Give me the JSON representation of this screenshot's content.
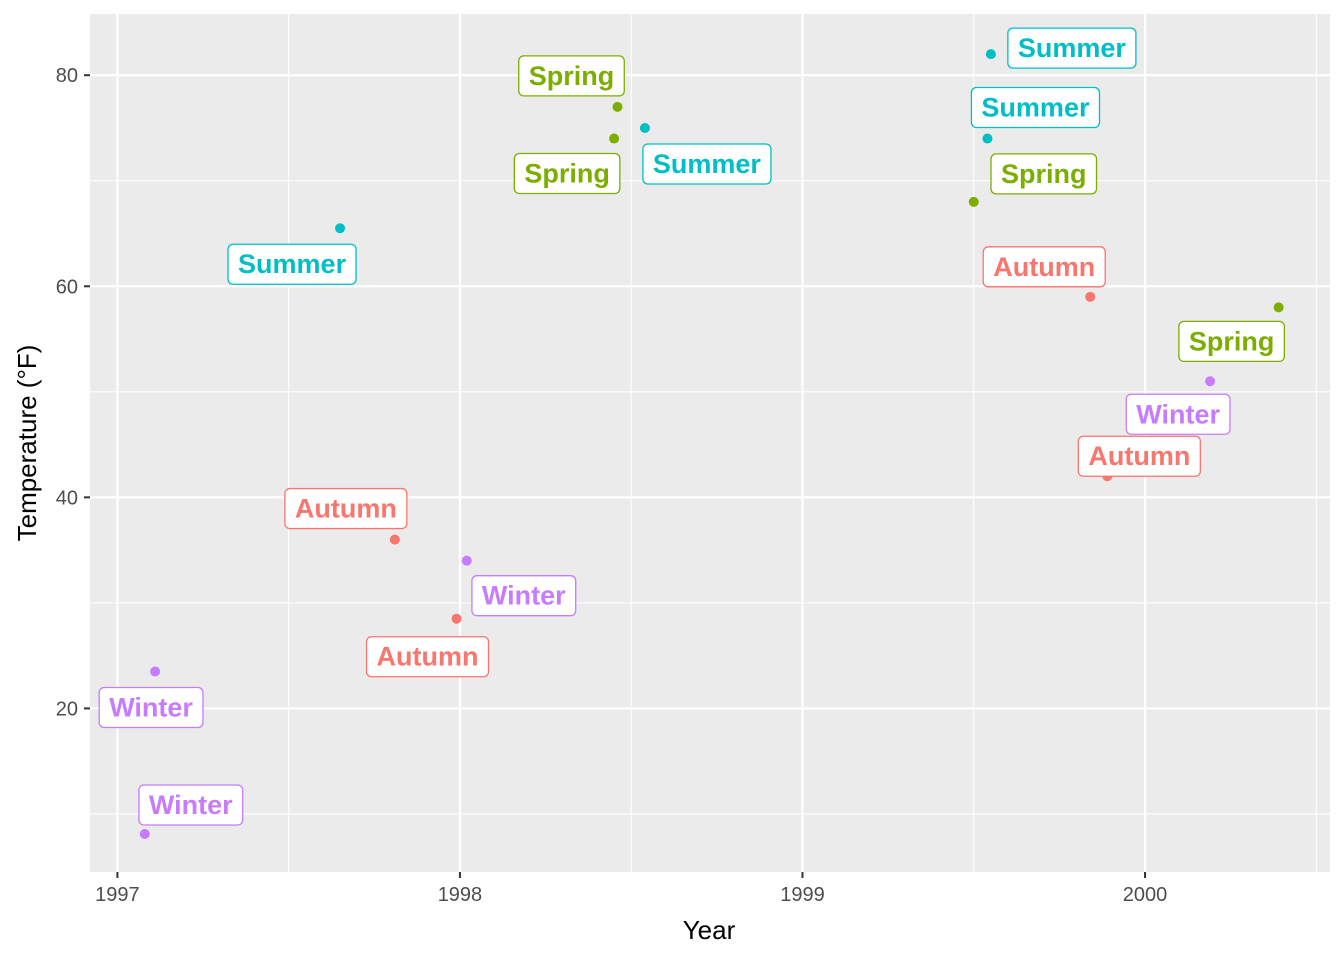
{
  "chart_data": {
    "type": "scatter",
    "title": "",
    "xlabel": "Year",
    "ylabel": "Temperature (°F)",
    "xlim": [
      1996.92,
      2000.54
    ],
    "ylim": [
      4.5,
      85.8
    ],
    "x_ticks": [
      1997,
      1998,
      1999,
      2000
    ],
    "x_tick_labels": [
      "1997",
      "1998",
      "1999",
      "2000"
    ],
    "y_ticks": [
      20,
      40,
      60,
      80
    ],
    "y_tick_labels": [
      "20",
      "40",
      "60",
      "80"
    ],
    "grid": true,
    "legend": "none",
    "colors": {
      "Autumn": "#F8766D",
      "Spring": "#7CAE00",
      "Summer": "#00BFC4",
      "Winter": "#C77CFF"
    },
    "points": [
      {
        "x": 1997.08,
        "y": 8.1,
        "label": "Winter"
      },
      {
        "x": 1997.11,
        "y": 23.5,
        "label": "Winter"
      },
      {
        "x": 1997.65,
        "y": 65.5,
        "label": "Summer"
      },
      {
        "x": 1997.81,
        "y": 36.0,
        "label": "Autumn"
      },
      {
        "x": 1997.99,
        "y": 28.5,
        "label": "Autumn"
      },
      {
        "x": 1998.02,
        "y": 34.0,
        "label": "Winter"
      },
      {
        "x": 1998.45,
        "y": 74.0,
        "label": "Spring"
      },
      {
        "x": 1998.46,
        "y": 77.0,
        "label": "Spring"
      },
      {
        "x": 1998.54,
        "y": 75.0,
        "label": "Summer"
      },
      {
        "x": 1999.5,
        "y": 68.0,
        "label": "Spring"
      },
      {
        "x": 1999.54,
        "y": 74.0,
        "label": "Summer"
      },
      {
        "x": 1999.55,
        "y": 82.0,
        "label": "Summer"
      },
      {
        "x": 1999.84,
        "y": 59.0,
        "label": "Autumn"
      },
      {
        "x": 1999.89,
        "y": 42.0,
        "label": "Autumn"
      },
      {
        "x": 2000.19,
        "y": 51.0,
        "label": "Winter"
      },
      {
        "x": 2000.39,
        "y": 58.0,
        "label": "Spring"
      }
    ]
  }
}
